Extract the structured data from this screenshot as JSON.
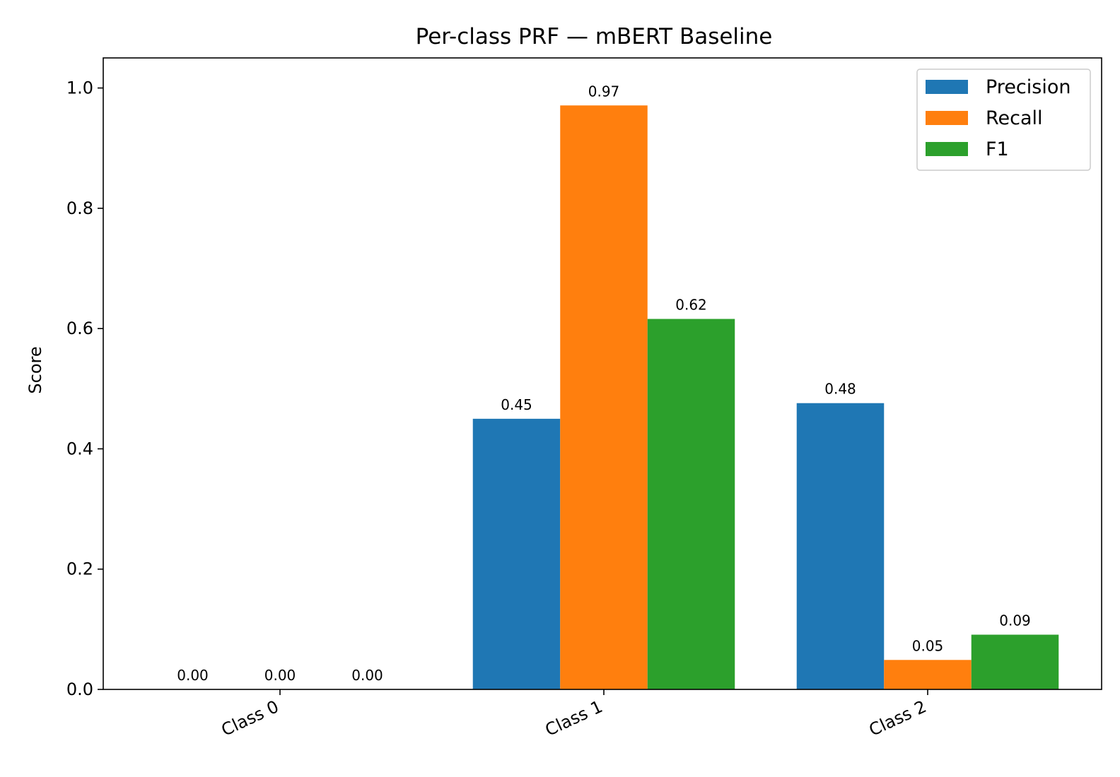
{
  "chart_data": {
    "type": "bar",
    "title": "Per-class PRF — mBERT Baseline",
    "xlabel": "",
    "ylabel": "Score",
    "ylim": [
      0,
      1.05
    ],
    "yticks": [
      0.0,
      0.2,
      0.4,
      0.6,
      0.8,
      1.0
    ],
    "ytick_labels": [
      "0.0",
      "0.2",
      "0.4",
      "0.6",
      "0.8",
      "1.0"
    ],
    "categories": [
      "Class 0",
      "Class 1",
      "Class 2"
    ],
    "series": [
      {
        "name": "Precision",
        "color": "#1f77b4",
        "values": [
          0.0,
          0.45,
          0.476
        ],
        "labels": [
          "0.00",
          "0.45",
          "0.48"
        ]
      },
      {
        "name": "Recall",
        "color": "#ff7f0e",
        "values": [
          0.0,
          0.971,
          0.049
        ],
        "labels": [
          "0.00",
          "0.97",
          "0.05"
        ]
      },
      {
        "name": "F1",
        "color": "#2ca02c",
        "values": [
          0.0,
          0.616,
          0.091
        ],
        "labels": [
          "0.00",
          "0.62",
          "0.09"
        ]
      }
    ],
    "legend": "top-right",
    "grid": false
  }
}
